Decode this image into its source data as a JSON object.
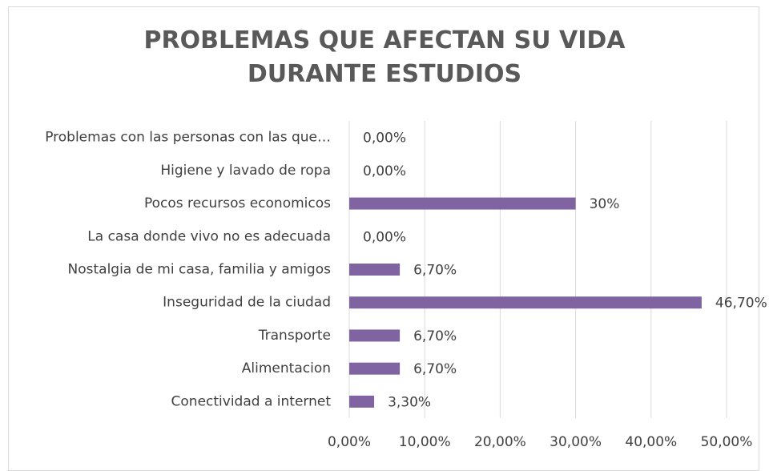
{
  "chart_data": {
    "type": "bar",
    "orientation": "horizontal",
    "title": "PROBLEMAS QUE AFECTAN SU VIDA DURANTE ESTUDIOS",
    "categories": [
      "Problemas con las personas con las que…",
      "Higiene y lavado de ropa",
      "Pocos recursos economicos",
      "La casa donde vivo no es adecuada",
      "Nostalgia de mi casa, familia y amigos",
      "Inseguridad de la ciudad",
      "Transporte",
      "Alimentacion",
      "Conectividad a internet"
    ],
    "values": [
      0,
      0,
      30,
      0,
      6.7,
      46.7,
      6.7,
      6.7,
      3.3
    ],
    "value_labels": [
      "0,00%",
      "0,00%",
      "30%",
      "0,00%",
      "6,70%",
      "46,70%",
      "6,70%",
      "6,70%",
      "3,30%"
    ],
    "color": "#8064a2",
    "xlim": [
      0,
      50
    ],
    "xticks": [
      {
        "value": 0,
        "label": "0,00%"
      },
      {
        "value": 10,
        "label": "10,00%"
      },
      {
        "value": 20,
        "label": "20,00%"
      },
      {
        "value": 30,
        "label": "30,00%"
      },
      {
        "value": 40,
        "label": "40,00%"
      },
      {
        "value": 50,
        "label": "50,00%"
      }
    ],
    "grid": true
  }
}
